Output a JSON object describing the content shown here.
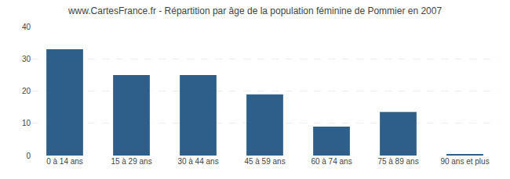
{
  "chart_data": {
    "type": "bar",
    "title": "www.CartesFrance.fr - Répartition par âge de la population féminine de Pommier en 2007",
    "categories": [
      "0 à 14 ans",
      "15 à 29 ans",
      "30 à 44 ans",
      "45 à 59 ans",
      "60 à 74 ans",
      "75 à 89 ans",
      "90 ans et plus"
    ],
    "values": [
      33.0,
      25.0,
      25.0,
      19.0,
      9.0,
      13.5,
      0.5
    ],
    "color": "#2E5F8A",
    "ylim": [
      0,
      40
    ],
    "yticks": [
      0,
      10,
      20,
      30,
      40
    ],
    "grid": true
  }
}
